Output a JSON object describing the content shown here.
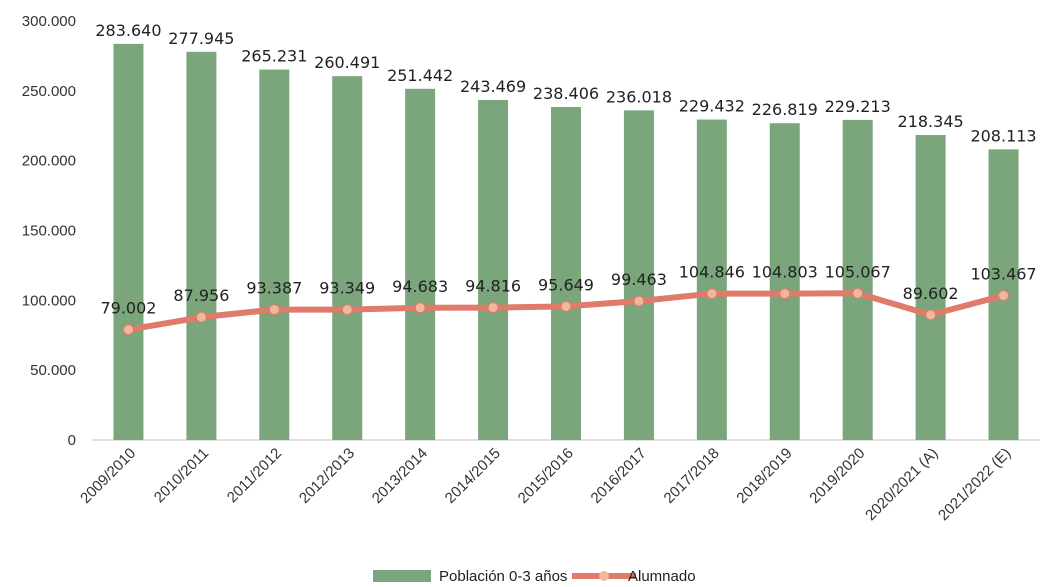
{
  "chart_data": {
    "type": "bar",
    "categories": [
      "2009/2010",
      "2010/2011",
      "2011/2012",
      "2012/2013",
      "2013/2014",
      "2014/2015",
      "2015/2016",
      "2016/2017",
      "2017/2018",
      "2018/2019",
      "2019/2020",
      "2020/2021 (A)",
      "2021/2022 (E)"
    ],
    "ylim": [
      0,
      300000
    ],
    "yticks": [
      0,
      50000,
      100000,
      150000,
      200000,
      250000,
      300000
    ],
    "ytick_labels": [
      "0",
      "50.000",
      "100.000",
      "150.000",
      "200.000",
      "250.000",
      "300.000"
    ],
    "legend_position": "bottom",
    "series": [
      {
        "name": "Población 0-3 años",
        "type": "bar",
        "color": "#7ba57b",
        "values": [
          283640,
          277945,
          265231,
          260491,
          251442,
          243469,
          238406,
          236018,
          229432,
          226819,
          229213,
          218345,
          208113
        ],
        "labels": [
          "283.640",
          "277.945",
          "265.231",
          "260.491",
          "251.442",
          "243.469",
          "238.406",
          "236.018",
          "229.432",
          "226.819",
          "229.213",
          "218.345",
          "208.113"
        ]
      },
      {
        "name": "Alumnado",
        "type": "line",
        "color": "#e07a6a",
        "marker_color": "#f0b89a",
        "values": [
          79002,
          87956,
          93387,
          93349,
          94683,
          94816,
          95649,
          99463,
          104846,
          104803,
          105067,
          89602,
          103467
        ],
        "labels": [
          "79.002",
          "87.956",
          "93.387",
          "93.349",
          "94.683",
          "94.816",
          "95.649",
          "99.463",
          "104.846",
          "104.803",
          "105.067",
          "89.602",
          "103.467"
        ]
      }
    ]
  }
}
